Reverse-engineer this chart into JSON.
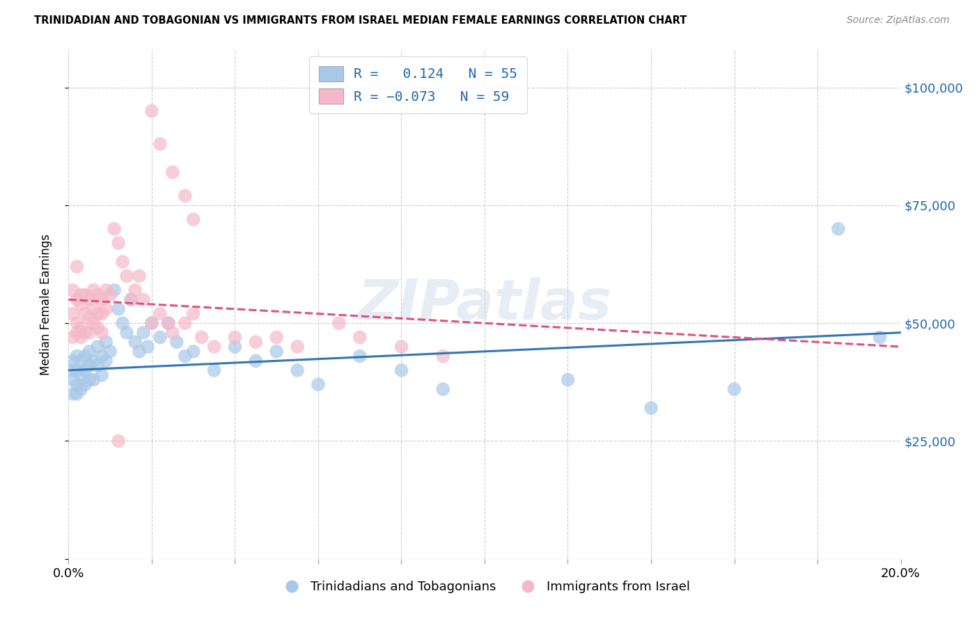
{
  "title": "TRINIDADIAN AND TOBAGONIAN VS IMMIGRANTS FROM ISRAEL MEDIAN FEMALE EARNINGS CORRELATION CHART",
  "source": "Source: ZipAtlas.com",
  "ylabel": "Median Female Earnings",
  "yticks": [
    0,
    25000,
    50000,
    75000,
    100000
  ],
  "ytick_labels": [
    "",
    "$25,000",
    "$50,000",
    "$75,000",
    "$100,000"
  ],
  "xlim": [
    0.0,
    0.2
  ],
  "ylim": [
    0,
    108000
  ],
  "watermark": "ZIPatlas",
  "blue_color": "#a8c8e8",
  "pink_color": "#f4b8c8",
  "blue_line_color": "#3575b5",
  "pink_line_color": "#e05080",
  "blue_scatter_x": [
    0.001,
    0.001,
    0.001,
    0.001,
    0.002,
    0.002,
    0.002,
    0.002,
    0.003,
    0.003,
    0.003,
    0.004,
    0.004,
    0.004,
    0.005,
    0.005,
    0.005,
    0.006,
    0.006,
    0.007,
    0.007,
    0.008,
    0.008,
    0.009,
    0.009,
    0.01,
    0.011,
    0.012,
    0.013,
    0.014,
    0.015,
    0.016,
    0.017,
    0.018,
    0.019,
    0.02,
    0.022,
    0.024,
    0.026,
    0.028,
    0.03,
    0.035,
    0.04,
    0.045,
    0.05,
    0.055,
    0.06,
    0.07,
    0.08,
    0.09,
    0.12,
    0.14,
    0.16,
    0.185,
    0.195
  ],
  "blue_scatter_y": [
    42000,
    40000,
    38000,
    35000,
    43000,
    40000,
    37000,
    35000,
    42000,
    39000,
    36000,
    43000,
    40000,
    37000,
    44000,
    41000,
    38000,
    42000,
    38000,
    45000,
    41000,
    43000,
    39000,
    46000,
    42000,
    44000,
    57000,
    53000,
    50000,
    48000,
    55000,
    46000,
    44000,
    48000,
    45000,
    50000,
    47000,
    50000,
    46000,
    43000,
    44000,
    40000,
    45000,
    42000,
    44000,
    40000,
    37000,
    43000,
    40000,
    36000,
    38000,
    32000,
    36000,
    70000,
    47000
  ],
  "pink_scatter_x": [
    0.001,
    0.001,
    0.001,
    0.002,
    0.002,
    0.002,
    0.003,
    0.003,
    0.003,
    0.004,
    0.004,
    0.004,
    0.005,
    0.005,
    0.005,
    0.006,
    0.006,
    0.006,
    0.007,
    0.007,
    0.007,
    0.008,
    0.008,
    0.009,
    0.009,
    0.01,
    0.011,
    0.012,
    0.013,
    0.014,
    0.015,
    0.016,
    0.017,
    0.018,
    0.02,
    0.022,
    0.024,
    0.025,
    0.028,
    0.03,
    0.032,
    0.035,
    0.04,
    0.045,
    0.05,
    0.055,
    0.065,
    0.07,
    0.08,
    0.09,
    0.02,
    0.022,
    0.025,
    0.028,
    0.03,
    0.002,
    0.003,
    0.008,
    0.012
  ],
  "pink_scatter_y": [
    57000,
    52000,
    47000,
    55000,
    50000,
    48000,
    54000,
    49000,
    47000,
    56000,
    52000,
    48000,
    55000,
    51000,
    48000,
    57000,
    53000,
    50000,
    56000,
    52000,
    49000,
    55000,
    52000,
    57000,
    53000,
    56000,
    70000,
    67000,
    63000,
    60000,
    55000,
    57000,
    60000,
    55000,
    50000,
    52000,
    50000,
    48000,
    50000,
    52000,
    47000,
    45000,
    47000,
    46000,
    47000,
    45000,
    50000,
    47000,
    45000,
    43000,
    95000,
    88000,
    82000,
    77000,
    72000,
    62000,
    56000,
    48000,
    25000
  ],
  "blue_line_x0": 0.0,
  "blue_line_y0": 40000,
  "blue_line_x1": 0.2,
  "blue_line_y1": 48000,
  "pink_line_x0": 0.0,
  "pink_line_y0": 55000,
  "pink_line_x1": 0.2,
  "pink_line_y1": 45000
}
